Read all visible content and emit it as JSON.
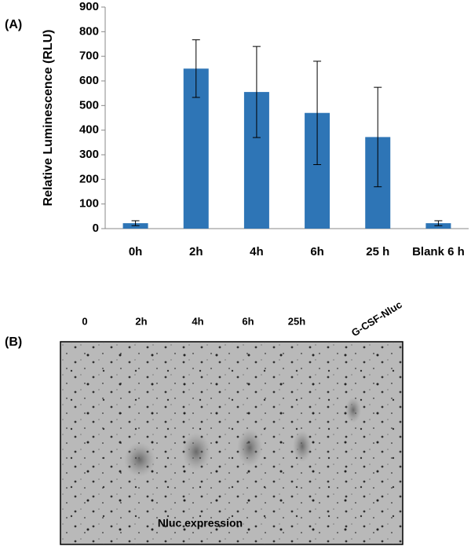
{
  "chart_data": {
    "type": "bar",
    "panel_label": "(A)",
    "y_label": "Relative Luminescence (RLU)",
    "categories": [
      "0h",
      "2h",
      "4h",
      "6h",
      "25 h",
      "Blank 6 h"
    ],
    "values": [
      22,
      650,
      555,
      470,
      372,
      22
    ],
    "errors": [
      10,
      117,
      185,
      210,
      202,
      10
    ],
    "color": "#2e75b6",
    "ylim": [
      0,
      900
    ],
    "yticks": [
      0,
      100,
      200,
      300,
      400,
      500,
      600,
      700,
      800,
      900
    ]
  },
  "panel_b": {
    "panel_label": "(B)",
    "lanes": [
      "0",
      "2h",
      "4h",
      "6h",
      "25h",
      "G-CSF-Nluc"
    ],
    "caption": "Nluc expression"
  }
}
